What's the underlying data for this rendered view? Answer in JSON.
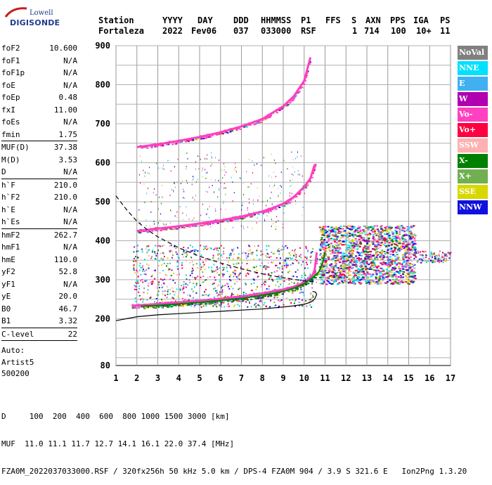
{
  "logo": {
    "top": "Lowell",
    "bottom": "DIGISONDE"
  },
  "header": {
    "row1": [
      "Station",
      "YYYY",
      "DAY",
      "DDD",
      "HHMMSS",
      "P1",
      "FFS",
      "S",
      "AXN",
      "PPS",
      "IGA",
      "PS"
    ],
    "row2": [
      "Fortaleza",
      "2022",
      "Fev06",
      "037",
      "033000",
      "RSF",
      "1",
      "714",
      "100",
      "10+",
      "11"
    ]
  },
  "params": [
    [
      {
        "name": "foF2",
        "value": "10.600"
      },
      {
        "name": "foF1",
        "value": "N/A"
      },
      {
        "name": "foF1p",
        "value": "N/A"
      },
      {
        "name": "foE",
        "value": "N/A"
      },
      {
        "name": "foEp",
        "value": "0.48"
      },
      {
        "name": "fxI",
        "value": "11.00"
      },
      {
        "name": "foEs",
        "value": "N/A"
      },
      {
        "name": "fmin",
        "value": "1.75"
      }
    ],
    [
      {
        "name": "MUF(D)",
        "value": "37.38"
      },
      {
        "name": "M(D)",
        "value": "3.53"
      },
      {
        "name": "D",
        "value": "N/A"
      }
    ],
    [
      {
        "name": "h`F",
        "value": "210.0"
      },
      {
        "name": "h`F2",
        "value": "210.0"
      },
      {
        "name": "h`E",
        "value": "N/A"
      },
      {
        "name": "h`Es",
        "value": "N/A"
      }
    ],
    [
      {
        "name": "hmF2",
        "value": "262.7"
      },
      {
        "name": "hmF1",
        "value": "N/A"
      },
      {
        "name": "hmE",
        "value": "110.0"
      },
      {
        "name": "yF2",
        "value": "52.8"
      },
      {
        "name": "yF1",
        "value": "N/A"
      },
      {
        "name": "yE",
        "value": "20.0"
      },
      {
        "name": "B0",
        "value": "46.7"
      },
      {
        "name": "B1",
        "value": "3.32"
      }
    ],
    [
      {
        "name": "C-level",
        "value": "22"
      }
    ]
  ],
  "autoscaling": {
    "line1": "Auto:",
    "line2": "Artist5",
    "line3": "500200"
  },
  "legend": [
    {
      "label": "NoVal",
      "color": "#808080"
    },
    {
      "label": "NNE",
      "color": "#00e0ff"
    },
    {
      "label": "E",
      "color": "#40b0f0"
    },
    {
      "label": "W",
      "color": "#b000b0"
    },
    {
      "label": "Vo-",
      "color": "#ff40c0"
    },
    {
      "label": "Vo+",
      "color": "#ff0040"
    },
    {
      "label": "SSW",
      "color": "#ffb0b0"
    },
    {
      "label": "X-",
      "color": "#008000"
    },
    {
      "label": "X+",
      "color": "#70b050"
    },
    {
      "label": "SSE",
      "color": "#d8d800"
    },
    {
      "label": "NNW",
      "color": "#1010e0"
    }
  ],
  "footer": {
    "line1": "D     100  200  400  600  800 1000 1500 3000 [km]",
    "line2": "MUF  11.0 11.1 11.7 12.7 14.1 16.1 22.0 37.4 [MHz]",
    "line3": "FZA0M_2022037033000.RSF / 320fx256h 50 kHz 5.0 km / DPS-4 FZA0M 904 / 3.9 S 321.6 E   Ion2Png 1.3.20"
  },
  "chart_data": {
    "type": "scatter",
    "x_ticks": [
      1,
      2,
      3,
      4,
      5,
      6,
      7,
      8,
      9,
      10,
      11,
      12,
      13,
      14,
      15,
      16,
      17
    ],
    "y_ticks": [
      200,
      300,
      400,
      500,
      600,
      700,
      800,
      900
    ],
    "y_extra_labels": [
      80
    ],
    "xlim": [
      1,
      17
    ],
    "ylim": [
      80,
      900
    ],
    "grid": true,
    "colors": {
      "o_trace": "#ff40c0",
      "x_trace": "#008000",
      "profile": "#000000",
      "muf_curve": "#000000"
    },
    "series": [
      {
        "role": "o-trace-1F",
        "x": [
          1.75,
          2.0,
          2.5,
          3.0,
          3.5,
          4.0,
          4.5,
          5.0,
          5.5,
          6.0,
          6.5,
          7.0,
          7.5,
          8.0,
          8.5,
          9.0,
          9.5,
          9.8,
          10.0,
          10.2,
          10.4,
          10.5,
          10.55,
          10.6
        ],
        "y": [
          233,
          234,
          236,
          238,
          240,
          242,
          244,
          246,
          248,
          251,
          254,
          257,
          261,
          265,
          270,
          275,
          282,
          288,
          293,
          300,
          312,
          325,
          345,
          370
        ]
      },
      {
        "role": "o-trace-2F",
        "x": [
          2.0,
          3.0,
          4.0,
          5.0,
          6.0,
          7.0,
          8.0,
          8.5,
          9.0,
          9.5,
          10.0,
          10.3,
          10.5
        ],
        "y": [
          425,
          431,
          437,
          444,
          452,
          462,
          475,
          484,
          495,
          512,
          538,
          560,
          595
        ]
      },
      {
        "role": "o-trace-3F",
        "x": [
          2.0,
          3.0,
          4.0,
          5.0,
          6.0,
          7.0,
          8.0,
          9.0,
          9.5,
          10.0,
          10.3
        ],
        "y": [
          640,
          647,
          656,
          666,
          678,
          693,
          712,
          745,
          770,
          810,
          870
        ]
      },
      {
        "role": "x-trace-1F",
        "x": [
          2.2,
          3.0,
          4.0,
          5.0,
          6.0,
          7.0,
          8.0,
          9.0,
          9.5,
          10.0,
          10.4,
          10.7,
          10.9,
          11.0
        ],
        "y": [
          232,
          234,
          238,
          242,
          247,
          252,
          260,
          270,
          278,
          290,
          305,
          320,
          345,
          372
        ]
      },
      {
        "role": "profile",
        "x": [
          1.0,
          2.0,
          3.0,
          4.0,
          5.0,
          6.0,
          7.0,
          8.0,
          9.0,
          9.5,
          10.0,
          10.3,
          10.5,
          10.6,
          10.55,
          10.4
        ],
        "y": [
          195,
          205,
          210,
          213,
          216,
          219,
          222,
          225,
          230,
          233,
          237,
          242,
          250,
          262,
          268,
          270
        ]
      },
      {
        "role": "muf-curve",
        "x": [
          1.0,
          1.5,
          2.0,
          2.5,
          3.0,
          4.0,
          5.0,
          6.0,
          7.0,
          8.0,
          9.0,
          10.0,
          10.6
        ],
        "y": [
          515,
          480,
          450,
          428,
          410,
          382,
          360,
          343,
          328,
          315,
          305,
          297,
          293
        ]
      }
    ]
  }
}
